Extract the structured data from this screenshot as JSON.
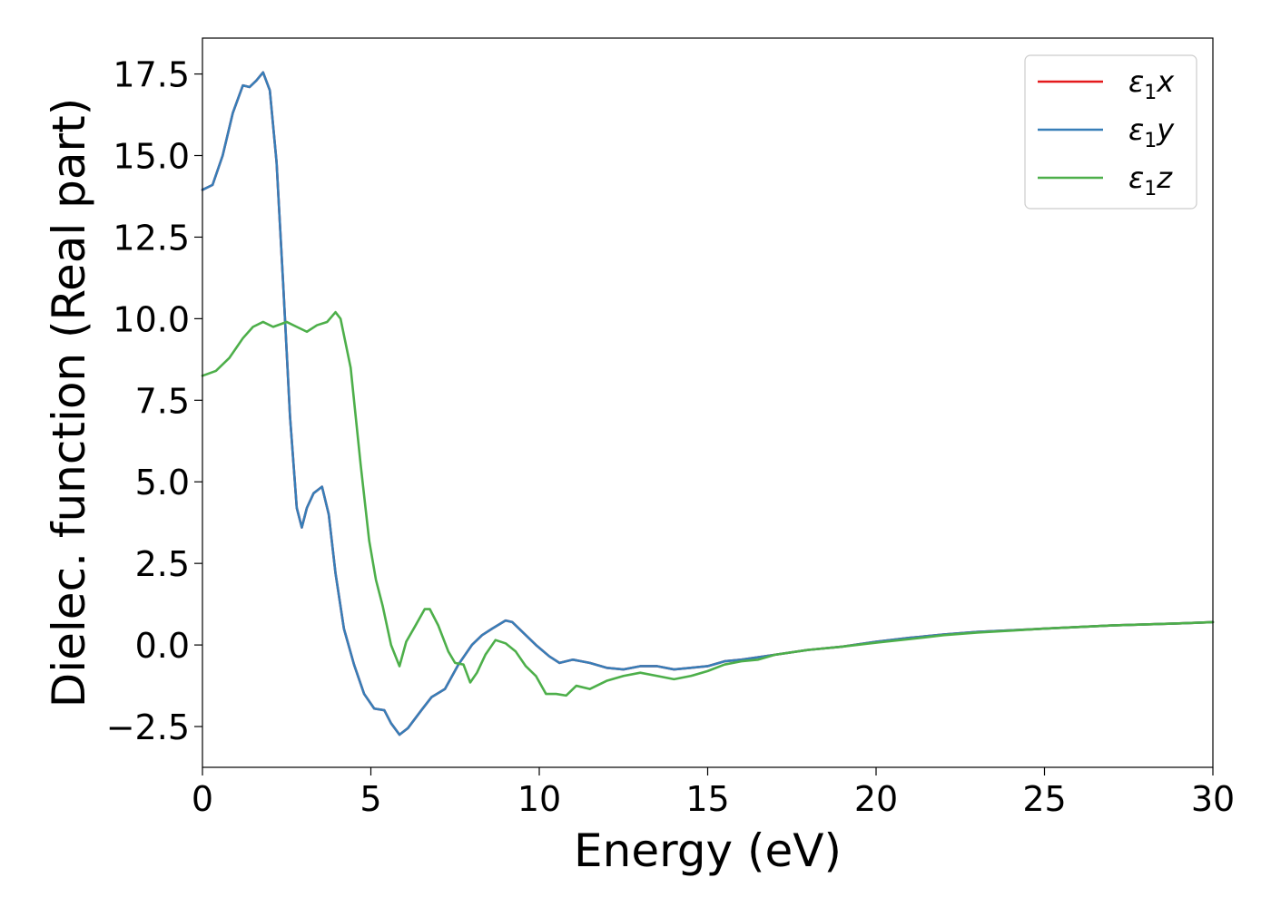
{
  "chart_data": {
    "type": "line",
    "xlabel": "Energy (eV)",
    "ylabel": "Dielec. function (Real part)",
    "xlim": [
      0,
      30
    ],
    "ylim": [
      -3.75,
      18.6
    ],
    "x_ticks": [
      0,
      5,
      10,
      15,
      20,
      25,
      30
    ],
    "x_tick_labels": [
      "0",
      "5",
      "10",
      "15",
      "20",
      "25",
      "30"
    ],
    "y_ticks": [
      -2.5,
      0.0,
      2.5,
      5.0,
      7.5,
      10.0,
      12.5,
      15.0,
      17.5
    ],
    "y_tick_labels": [
      "−2.5",
      "0.0",
      "2.5",
      "5.0",
      "7.5",
      "10.0",
      "12.5",
      "15.0",
      "17.5"
    ],
    "grid": false,
    "legend_position": "top-right",
    "series": [
      {
        "name": "ε₁x",
        "legend_base": "ε",
        "legend_sub": "1",
        "legend_tail": "x",
        "color": "#e41a1c",
        "points": [
          [
            0,
            13.95
          ],
          [
            0.3,
            14.1
          ],
          [
            0.6,
            15.0
          ],
          [
            0.9,
            16.3
          ],
          [
            1.2,
            17.15
          ],
          [
            1.4,
            17.1
          ],
          [
            1.6,
            17.3
          ],
          [
            1.8,
            17.55
          ],
          [
            2.0,
            17.0
          ],
          [
            2.2,
            14.8
          ],
          [
            2.4,
            11.0
          ],
          [
            2.6,
            7.0
          ],
          [
            2.8,
            4.2
          ],
          [
            2.95,
            3.6
          ],
          [
            3.1,
            4.2
          ],
          [
            3.3,
            4.65
          ],
          [
            3.55,
            4.85
          ],
          [
            3.75,
            4.0
          ],
          [
            3.95,
            2.2
          ],
          [
            4.2,
            0.5
          ],
          [
            4.5,
            -0.6
          ],
          [
            4.8,
            -1.5
          ],
          [
            5.1,
            -1.95
          ],
          [
            5.4,
            -2.0
          ],
          [
            5.6,
            -2.4
          ],
          [
            5.85,
            -2.75
          ],
          [
            6.1,
            -2.55
          ],
          [
            6.5,
            -2.0
          ],
          [
            6.8,
            -1.6
          ],
          [
            7.2,
            -1.35
          ],
          [
            7.6,
            -0.6
          ],
          [
            8.0,
            0.0
          ],
          [
            8.3,
            0.3
          ],
          [
            8.6,
            0.5
          ],
          [
            9.0,
            0.75
          ],
          [
            9.2,
            0.7
          ],
          [
            9.5,
            0.4
          ],
          [
            9.9,
            0.0
          ],
          [
            10.3,
            -0.35
          ],
          [
            10.6,
            -0.55
          ],
          [
            11.0,
            -0.45
          ],
          [
            11.5,
            -0.55
          ],
          [
            12.0,
            -0.7
          ],
          [
            12.5,
            -0.75
          ],
          [
            13.0,
            -0.65
          ],
          [
            13.5,
            -0.65
          ],
          [
            14.0,
            -0.75
          ],
          [
            14.5,
            -0.7
          ],
          [
            15.0,
            -0.65
          ],
          [
            15.5,
            -0.5
          ],
          [
            16.0,
            -0.45
          ],
          [
            17.0,
            -0.3
          ],
          [
            18.0,
            -0.15
          ],
          [
            19.0,
            -0.05
          ],
          [
            20.0,
            0.1
          ],
          [
            21.0,
            0.22
          ],
          [
            22.0,
            0.32
          ],
          [
            23.0,
            0.4
          ],
          [
            24.0,
            0.45
          ],
          [
            25.0,
            0.5
          ],
          [
            26.0,
            0.55
          ],
          [
            27.0,
            0.6
          ],
          [
            28.0,
            0.63
          ],
          [
            29.0,
            0.66
          ],
          [
            30.0,
            0.7
          ]
        ]
      },
      {
        "name": "ε₁y",
        "legend_base": "ε",
        "legend_sub": "1",
        "legend_tail": "y",
        "color": "#377eb8",
        "points": [
          [
            0,
            13.95
          ],
          [
            0.3,
            14.1
          ],
          [
            0.6,
            15.0
          ],
          [
            0.9,
            16.3
          ],
          [
            1.2,
            17.15
          ],
          [
            1.4,
            17.1
          ],
          [
            1.6,
            17.3
          ],
          [
            1.8,
            17.55
          ],
          [
            2.0,
            17.0
          ],
          [
            2.2,
            14.8
          ],
          [
            2.4,
            11.0
          ],
          [
            2.6,
            7.0
          ],
          [
            2.8,
            4.2
          ],
          [
            2.95,
            3.6
          ],
          [
            3.1,
            4.2
          ],
          [
            3.3,
            4.65
          ],
          [
            3.55,
            4.85
          ],
          [
            3.75,
            4.0
          ],
          [
            3.95,
            2.2
          ],
          [
            4.2,
            0.5
          ],
          [
            4.5,
            -0.6
          ],
          [
            4.8,
            -1.5
          ],
          [
            5.1,
            -1.95
          ],
          [
            5.4,
            -2.0
          ],
          [
            5.6,
            -2.4
          ],
          [
            5.85,
            -2.75
          ],
          [
            6.1,
            -2.55
          ],
          [
            6.5,
            -2.0
          ],
          [
            6.8,
            -1.6
          ],
          [
            7.2,
            -1.35
          ],
          [
            7.6,
            -0.6
          ],
          [
            8.0,
            0.0
          ],
          [
            8.3,
            0.3
          ],
          [
            8.6,
            0.5
          ],
          [
            9.0,
            0.75
          ],
          [
            9.2,
            0.7
          ],
          [
            9.5,
            0.4
          ],
          [
            9.9,
            0.0
          ],
          [
            10.3,
            -0.35
          ],
          [
            10.6,
            -0.55
          ],
          [
            11.0,
            -0.45
          ],
          [
            11.5,
            -0.55
          ],
          [
            12.0,
            -0.7
          ],
          [
            12.5,
            -0.75
          ],
          [
            13.0,
            -0.65
          ],
          [
            13.5,
            -0.65
          ],
          [
            14.0,
            -0.75
          ],
          [
            14.5,
            -0.7
          ],
          [
            15.0,
            -0.65
          ],
          [
            15.5,
            -0.5
          ],
          [
            16.0,
            -0.45
          ],
          [
            17.0,
            -0.3
          ],
          [
            18.0,
            -0.15
          ],
          [
            19.0,
            -0.05
          ],
          [
            20.0,
            0.1
          ],
          [
            21.0,
            0.22
          ],
          [
            22.0,
            0.32
          ],
          [
            23.0,
            0.4
          ],
          [
            24.0,
            0.45
          ],
          [
            25.0,
            0.5
          ],
          [
            26.0,
            0.55
          ],
          [
            27.0,
            0.6
          ],
          [
            28.0,
            0.63
          ],
          [
            29.0,
            0.66
          ],
          [
            30.0,
            0.7
          ]
        ]
      },
      {
        "name": "ε₁z",
        "legend_base": "ε",
        "legend_sub": "1",
        "legend_tail": "z",
        "color": "#4daf4a",
        "points": [
          [
            0,
            8.25
          ],
          [
            0.4,
            8.4
          ],
          [
            0.8,
            8.8
          ],
          [
            1.2,
            9.4
          ],
          [
            1.5,
            9.75
          ],
          [
            1.8,
            9.9
          ],
          [
            2.1,
            9.75
          ],
          [
            2.5,
            9.9
          ],
          [
            2.8,
            9.75
          ],
          [
            3.1,
            9.6
          ],
          [
            3.4,
            9.8
          ],
          [
            3.7,
            9.9
          ],
          [
            3.95,
            10.2
          ],
          [
            4.1,
            10.0
          ],
          [
            4.4,
            8.5
          ],
          [
            4.7,
            5.5
          ],
          [
            4.95,
            3.2
          ],
          [
            5.15,
            2.0
          ],
          [
            5.35,
            1.2
          ],
          [
            5.6,
            0.0
          ],
          [
            5.85,
            -0.65
          ],
          [
            6.05,
            0.1
          ],
          [
            6.3,
            0.55
          ],
          [
            6.6,
            1.1
          ],
          [
            6.75,
            1.1
          ],
          [
            7.0,
            0.6
          ],
          [
            7.3,
            -0.2
          ],
          [
            7.5,
            -0.55
          ],
          [
            7.75,
            -0.6
          ],
          [
            7.95,
            -1.15
          ],
          [
            8.15,
            -0.85
          ],
          [
            8.4,
            -0.3
          ],
          [
            8.7,
            0.15
          ],
          [
            9.0,
            0.05
          ],
          [
            9.3,
            -0.2
          ],
          [
            9.6,
            -0.65
          ],
          [
            9.9,
            -0.95
          ],
          [
            10.2,
            -1.5
          ],
          [
            10.5,
            -1.5
          ],
          [
            10.8,
            -1.55
          ],
          [
            11.1,
            -1.25
          ],
          [
            11.5,
            -1.35
          ],
          [
            12.0,
            -1.1
          ],
          [
            12.5,
            -0.95
          ],
          [
            13.0,
            -0.85
          ],
          [
            13.5,
            -0.95
          ],
          [
            14.0,
            -1.05
          ],
          [
            14.5,
            -0.95
          ],
          [
            15.0,
            -0.8
          ],
          [
            15.5,
            -0.6
          ],
          [
            16.0,
            -0.5
          ],
          [
            16.5,
            -0.45
          ],
          [
            17.0,
            -0.3
          ],
          [
            18.0,
            -0.15
          ],
          [
            19.0,
            -0.05
          ],
          [
            20.0,
            0.07
          ],
          [
            21.0,
            0.18
          ],
          [
            22.0,
            0.3
          ],
          [
            23.0,
            0.38
          ],
          [
            24.0,
            0.44
          ],
          [
            25.0,
            0.5
          ],
          [
            26.0,
            0.55
          ],
          [
            27.0,
            0.6
          ],
          [
            28.0,
            0.63
          ],
          [
            29.0,
            0.66
          ],
          [
            30.0,
            0.7
          ]
        ]
      }
    ]
  }
}
